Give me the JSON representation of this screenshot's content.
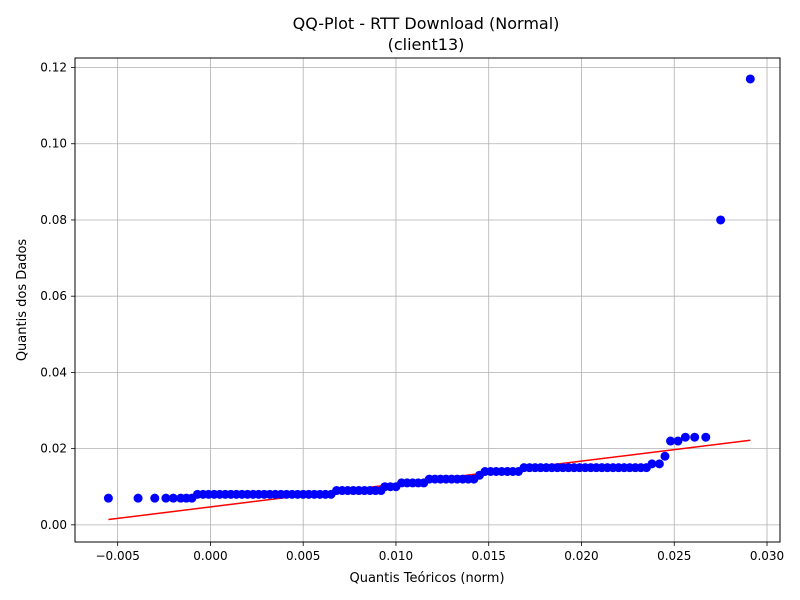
{
  "chart_data": {
    "type": "scatter",
    "title": "QQ-Plot - RTT Download (Normal)",
    "subtitle": "(client13)",
    "xlabel": "Quantis Teóricos (norm)",
    "ylabel": "Quantis dos Dados",
    "xlim": [
      -0.0073,
      0.0307
    ],
    "ylim": [
      -0.0045,
      0.1225
    ],
    "xticks": [
      -0.005,
      0.0,
      0.005,
      0.01,
      0.015,
      0.02,
      0.025,
      0.03
    ],
    "xtick_labels": [
      "−0.005",
      "0.000",
      "0.005",
      "0.010",
      "0.015",
      "0.020",
      "0.025",
      "0.030"
    ],
    "yticks": [
      0.0,
      0.02,
      0.04,
      0.06,
      0.08,
      0.1,
      0.12
    ],
    "ytick_labels": [
      "0.00",
      "0.02",
      "0.04",
      "0.06",
      "0.08",
      "0.10",
      "0.12"
    ],
    "grid": true,
    "marker_color": "#0000ff",
    "line_color": "#ff0000",
    "points": [
      [
        -0.0055,
        0.007
      ],
      [
        -0.0039,
        0.007
      ],
      [
        -0.003,
        0.007
      ],
      [
        -0.0024,
        0.007
      ],
      [
        -0.002,
        0.007
      ],
      [
        -0.0016,
        0.007
      ],
      [
        -0.0013,
        0.007
      ],
      [
        -0.001,
        0.007
      ],
      [
        -0.0007,
        0.008
      ],
      [
        -0.0004,
        0.008
      ],
      [
        -0.0001,
        0.008
      ],
      [
        0.0002,
        0.008
      ],
      [
        0.0005,
        0.008
      ],
      [
        0.0008,
        0.008
      ],
      [
        0.0011,
        0.008
      ],
      [
        0.0014,
        0.008
      ],
      [
        0.0017,
        0.008
      ],
      [
        0.002,
        0.008
      ],
      [
        0.0023,
        0.008
      ],
      [
        0.0026,
        0.008
      ],
      [
        0.0029,
        0.008
      ],
      [
        0.0032,
        0.008
      ],
      [
        0.0035,
        0.008
      ],
      [
        0.0038,
        0.008
      ],
      [
        0.0041,
        0.008
      ],
      [
        0.0044,
        0.008
      ],
      [
        0.0047,
        0.008
      ],
      [
        0.005,
        0.008
      ],
      [
        0.0053,
        0.008
      ],
      [
        0.0056,
        0.008
      ],
      [
        0.0059,
        0.008
      ],
      [
        0.0062,
        0.008
      ],
      [
        0.0065,
        0.008
      ],
      [
        0.0068,
        0.009
      ],
      [
        0.0071,
        0.009
      ],
      [
        0.0074,
        0.009
      ],
      [
        0.0077,
        0.009
      ],
      [
        0.008,
        0.009
      ],
      [
        0.0083,
        0.009
      ],
      [
        0.0086,
        0.009
      ],
      [
        0.0089,
        0.009
      ],
      [
        0.0092,
        0.009
      ],
      [
        0.0094,
        0.01
      ],
      [
        0.0097,
        0.01
      ],
      [
        0.01,
        0.01
      ],
      [
        0.0103,
        0.011
      ],
      [
        0.0106,
        0.011
      ],
      [
        0.0109,
        0.011
      ],
      [
        0.0112,
        0.011
      ],
      [
        0.0115,
        0.011
      ],
      [
        0.0118,
        0.012
      ],
      [
        0.0121,
        0.012
      ],
      [
        0.0124,
        0.012
      ],
      [
        0.0127,
        0.012
      ],
      [
        0.013,
        0.012
      ],
      [
        0.0133,
        0.012
      ],
      [
        0.0136,
        0.012
      ],
      [
        0.0139,
        0.012
      ],
      [
        0.0142,
        0.012
      ],
      [
        0.0145,
        0.013
      ],
      [
        0.0148,
        0.014
      ],
      [
        0.0151,
        0.014
      ],
      [
        0.0154,
        0.014
      ],
      [
        0.0157,
        0.014
      ],
      [
        0.016,
        0.014
      ],
      [
        0.0163,
        0.014
      ],
      [
        0.0166,
        0.014
      ],
      [
        0.0169,
        0.015
      ],
      [
        0.0172,
        0.015
      ],
      [
        0.0175,
        0.015
      ],
      [
        0.0178,
        0.015
      ],
      [
        0.0181,
        0.015
      ],
      [
        0.0184,
        0.015
      ],
      [
        0.0187,
        0.015
      ],
      [
        0.019,
        0.015
      ],
      [
        0.0193,
        0.015
      ],
      [
        0.0196,
        0.015
      ],
      [
        0.0199,
        0.015
      ],
      [
        0.0202,
        0.015
      ],
      [
        0.0205,
        0.015
      ],
      [
        0.0208,
        0.015
      ],
      [
        0.0211,
        0.015
      ],
      [
        0.0214,
        0.015
      ],
      [
        0.0217,
        0.015
      ],
      [
        0.022,
        0.015
      ],
      [
        0.0223,
        0.015
      ],
      [
        0.0226,
        0.015
      ],
      [
        0.0229,
        0.015
      ],
      [
        0.0232,
        0.015
      ],
      [
        0.0235,
        0.015
      ],
      [
        0.0238,
        0.016
      ],
      [
        0.0242,
        0.016
      ],
      [
        0.0245,
        0.018
      ],
      [
        0.0248,
        0.022
      ],
      [
        0.0252,
        0.022
      ],
      [
        0.0256,
        0.023
      ],
      [
        0.0261,
        0.023
      ],
      [
        0.0267,
        0.023
      ],
      [
        0.0275,
        0.08
      ],
      [
        0.0291,
        0.117
      ]
    ],
    "fit_line": {
      "x": [
        -0.0055,
        0.0291
      ],
      "y": [
        0.0014,
        0.0222
      ]
    }
  }
}
